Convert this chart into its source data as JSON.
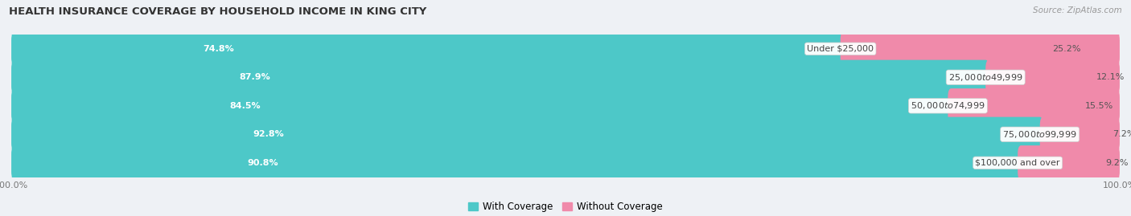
{
  "title": "HEALTH INSURANCE COVERAGE BY HOUSEHOLD INCOME IN KING CITY",
  "source": "Source: ZipAtlas.com",
  "categories": [
    "Under $25,000",
    "$25,000 to $49,999",
    "$50,000 to $74,999",
    "$75,000 to $99,999",
    "$100,000 and over"
  ],
  "with_coverage": [
    74.8,
    87.9,
    84.5,
    92.8,
    90.8
  ],
  "without_coverage": [
    25.2,
    12.1,
    15.5,
    7.2,
    9.2
  ],
  "color_coverage": "#4dc8c8",
  "color_without": "#f08aaa",
  "bg_color": "#eef1f5",
  "row_bg": "#ffffff",
  "title_fontsize": 9.5,
  "bar_label_fontsize": 8.0,
  "pct_fontsize": 8.0,
  "tick_fontsize": 8.0,
  "legend_fontsize": 8.5,
  "source_fontsize": 7.5
}
